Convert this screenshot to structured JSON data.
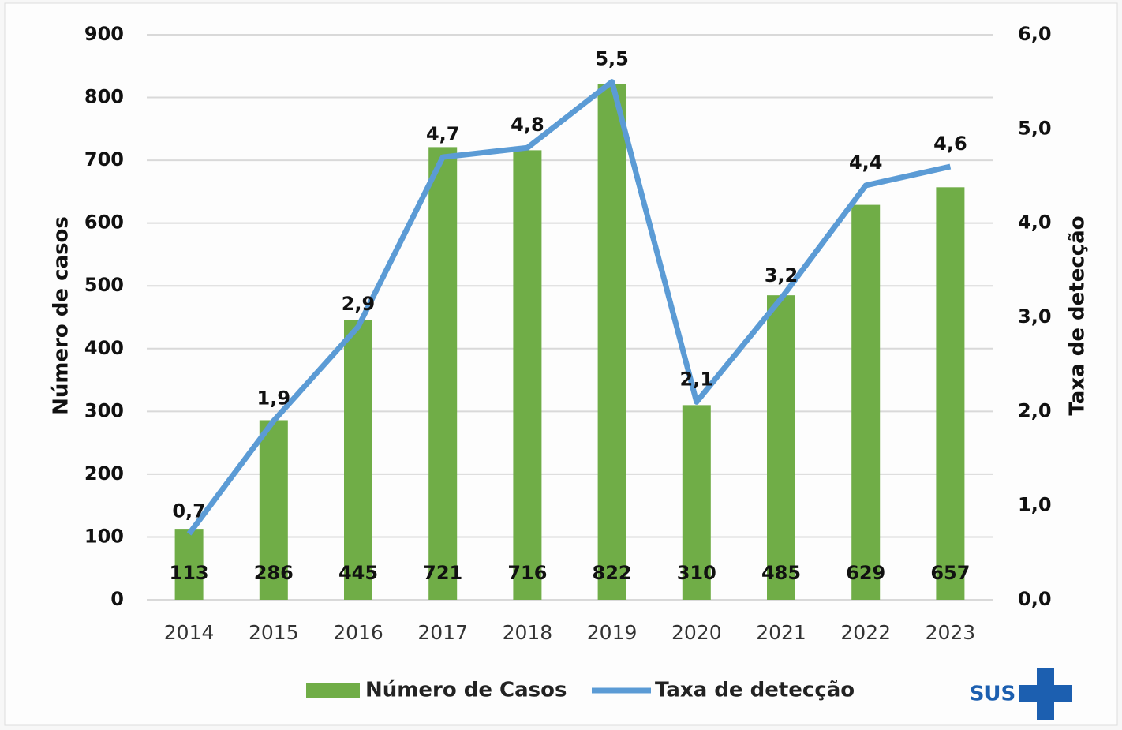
{
  "chart_data": {
    "type": "bar_line",
    "categories": [
      "2014",
      "2015",
      "2016",
      "2017",
      "2018",
      "2019",
      "2020",
      "2021",
      "2022",
      "2023"
    ],
    "series": [
      {
        "name": "Número de Casos",
        "type": "bar",
        "color": "#70ad47",
        "values": [
          113,
          286,
          445,
          721,
          716,
          822,
          310,
          485,
          629,
          657
        ]
      },
      {
        "name": "Taxa de detecção",
        "type": "line",
        "axis": "y2",
        "color": "#5b9bd5",
        "values": [
          0.7,
          1.9,
          2.9,
          4.7,
          4.8,
          5.5,
          2.1,
          3.2,
          4.4,
          4.6
        ],
        "value_labels": [
          "0,7",
          "1,9",
          "2,9",
          "4,7",
          "4,8",
          "5,5",
          "2,1",
          "3,2",
          "4,4",
          "4,6"
        ]
      }
    ],
    "ylabel": "Número de casos",
    "y2label": "Taxa de detecção",
    "ylim": [
      0,
      900
    ],
    "yticks": [
      0,
      100,
      200,
      300,
      400,
      500,
      600,
      700,
      800,
      900
    ],
    "y2lim": [
      0,
      6
    ],
    "y2ticks": [
      {
        "value": 0,
        "label": "0,0"
      },
      {
        "value": 1,
        "label": "1,0"
      },
      {
        "value": 2,
        "label": "2,0"
      },
      {
        "value": 3,
        "label": "3,0"
      },
      {
        "value": 4,
        "label": "4,0"
      },
      {
        "value": 5,
        "label": "5,0"
      },
      {
        "value": 6,
        "label": "6,0"
      }
    ],
    "grid": true,
    "legend": "bottom"
  },
  "logo_text": "SUS"
}
